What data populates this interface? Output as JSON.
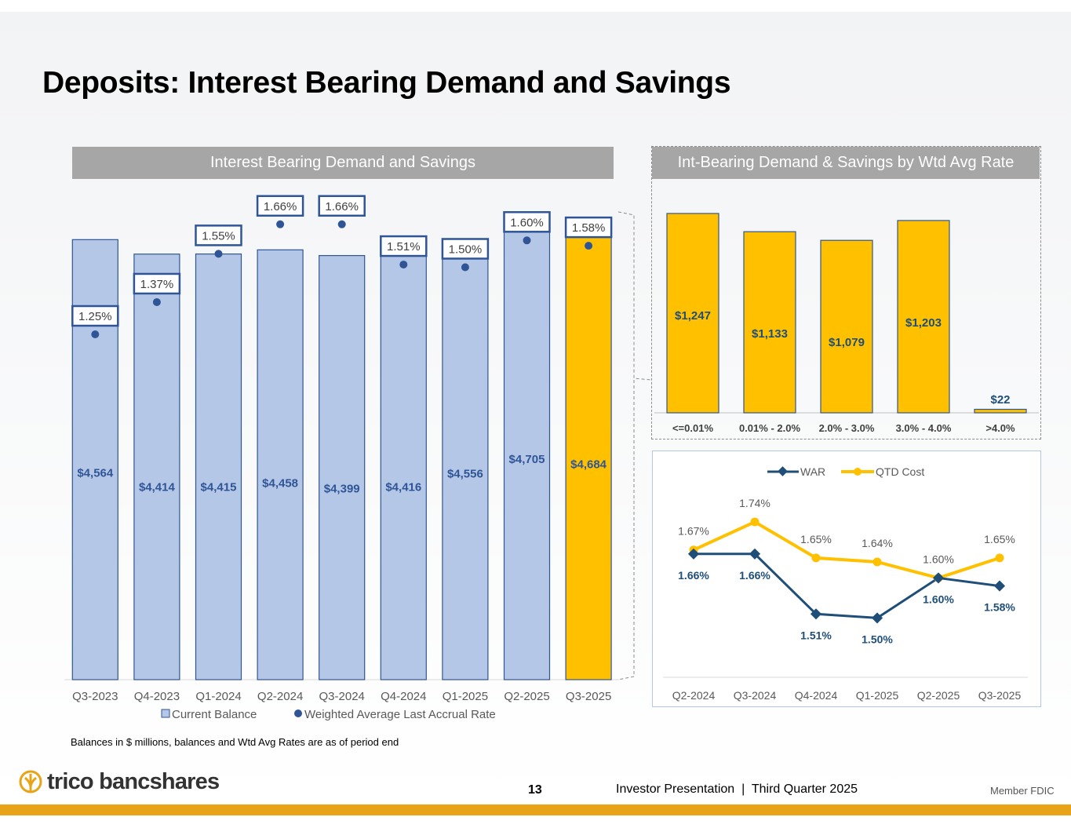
{
  "page_title": "Deposits: Interest Bearing Demand and Savings",
  "left_header": "Interest Bearing Demand and Savings",
  "right_header": "Int-Bearing Demand & Savings by Wtd Avg Rate",
  "colors": {
    "bar_blue": "#b4c7e7",
    "bar_border": "#2f5597",
    "bar_gold": "#ffc000",
    "navy": "#1f4e79",
    "label_blue": "#2f5597",
    "war_line": "#1f4e79",
    "qtd_line": "#ffc000",
    "brand_gold": "#e8a317"
  },
  "chart_data": [
    {
      "type": "bar",
      "title": "Interest Bearing Demand and Savings",
      "categories": [
        "Q3-2023",
        "Q4-2023",
        "Q1-2024",
        "Q2-2024",
        "Q3-2024",
        "Q4-2024",
        "Q1-2025",
        "Q2-2025",
        "Q3-2025"
      ],
      "series": [
        {
          "name": "Current Balance",
          "values": [
            4564,
            4414,
            4415,
            4458,
            4399,
            4416,
            4556,
            4705,
            4684
          ],
          "labels": [
            "$4,564",
            "$4,414",
            "$4,415",
            "$4,458",
            "$4,399",
            "$4,416",
            "$4,556",
            "$4,705",
            "$4,684"
          ]
        },
        {
          "name": "Weighted Average Last Accrual Rate",
          "values": [
            1.25,
            1.37,
            1.55,
            1.66,
            1.66,
            1.51,
            1.5,
            1.6,
            1.58
          ],
          "labels": [
            "1.25%",
            "1.37%",
            "1.55%",
            "1.66%",
            "1.66%",
            "1.51%",
            "1.50%",
            "1.60%",
            "1.58%"
          ]
        }
      ],
      "legend": [
        "Current Balance",
        "Weighted Average Last Accrual Rate"
      ],
      "highlight_category": "Q3-2025"
    },
    {
      "type": "bar",
      "title": "Int-Bearing Demand & Savings by Wtd Avg Rate",
      "categories": [
        "<=0.01%",
        "0.01% - 2.0%",
        "2.0% - 3.0%",
        "3.0% - 4.0%",
        ">4.0%"
      ],
      "values": [
        1247,
        1133,
        1079,
        1203,
        22
      ],
      "labels": [
        "$1,247",
        "$1,133",
        "$1,079",
        "$1,203",
        "$22"
      ]
    },
    {
      "type": "line",
      "categories": [
        "Q2-2024",
        "Q3-2024",
        "Q4-2024",
        "Q1-2025",
        "Q2-2025",
        "Q3-2025"
      ],
      "series": [
        {
          "name": "WAR",
          "values": [
            1.66,
            1.66,
            1.51,
            1.5,
            1.6,
            1.58
          ],
          "labels": [
            "1.66%",
            "1.66%",
            "1.51%",
            "1.50%",
            "1.60%",
            "1.58%"
          ]
        },
        {
          "name": "QTD Cost",
          "values": [
            1.67,
            1.74,
            1.65,
            1.64,
            1.6,
            1.65
          ],
          "labels": [
            "1.67%",
            "1.74%",
            "1.65%",
            "1.64%",
            "1.60%",
            "1.65%"
          ]
        }
      ],
      "legend": [
        "WAR",
        "QTD Cost"
      ],
      "ylim": [
        1.35,
        1.8
      ]
    }
  ],
  "footnote": "Balances in $ millions, balances and Wtd Avg Rates are as of period end",
  "footer": {
    "logo_text": "trico bancshares",
    "page_number": "13",
    "presentation": "Investor Presentation  |  Third Quarter 2025",
    "fdic": "Member FDIC"
  }
}
